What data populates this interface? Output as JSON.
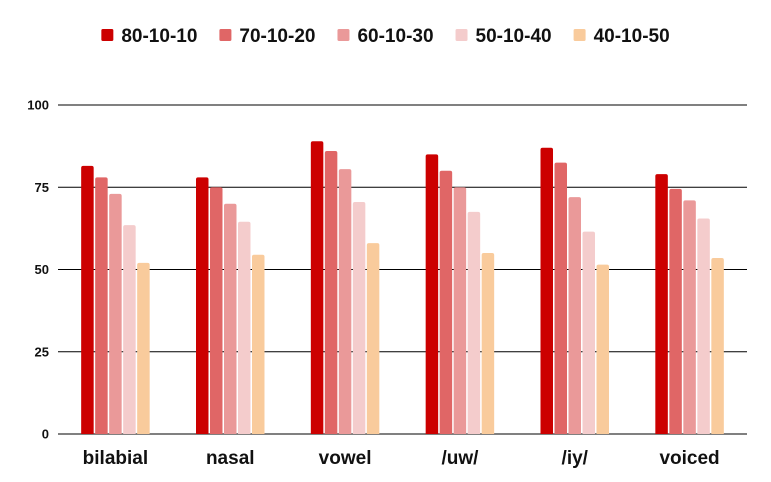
{
  "chart_data": {
    "type": "bar",
    "title": "",
    "xlabel": "",
    "ylabel": "",
    "categories": [
      "bilabial",
      "nasal",
      "vowel",
      "/uw/",
      "/iy/",
      "voiced"
    ],
    "series": [
      {
        "name": "80-10-10",
        "color": "#cc0000",
        "values": [
          81.5,
          78,
          89,
          85,
          87,
          79
        ]
      },
      {
        "name": "70-10-20",
        "color": "#e06666",
        "values": [
          78,
          75,
          86,
          80,
          82.5,
          74.5
        ]
      },
      {
        "name": "60-10-30",
        "color": "#ea9999",
        "values": [
          73,
          70,
          80.5,
          75,
          72,
          71
        ]
      },
      {
        "name": "50-10-40",
        "color": "#f4cccc",
        "values": [
          63.5,
          64.5,
          70.5,
          67.5,
          61.5,
          65.5
        ]
      },
      {
        "name": "40-10-50",
        "color": "#f9cb9c",
        "values": [
          52,
          54.5,
          58,
          55,
          51.5,
          53.5
        ]
      }
    ],
    "ylim": [
      0,
      100
    ],
    "yticks": [
      0,
      25,
      50,
      75,
      100
    ],
    "grid": true,
    "legend_position": "top"
  }
}
